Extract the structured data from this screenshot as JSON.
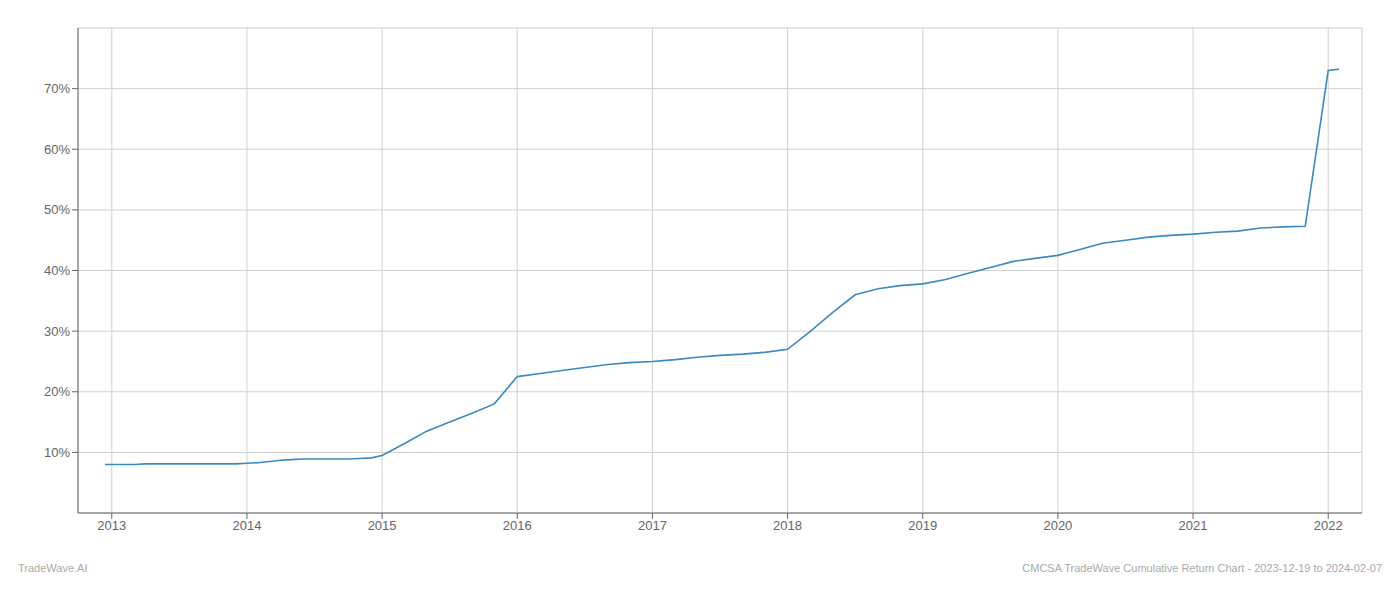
{
  "chart_data": {
    "type": "line",
    "annotations": [
      "TradeWave.AI",
      "CMCSA TradeWave Cumulative Return Chart - 2023-12-19 to 2024-02-07"
    ],
    "color": "#3a8abf",
    "grid": true,
    "x": [
      2012.95,
      2013.0,
      2013.08,
      2013.17,
      2013.25,
      2013.33,
      2013.42,
      2013.5,
      2013.58,
      2013.67,
      2013.75,
      2013.83,
      2013.92,
      2014.0,
      2014.08,
      2014.17,
      2014.25,
      2014.33,
      2014.42,
      2014.5,
      2014.58,
      2014.67,
      2014.75,
      2014.83,
      2014.92,
      2015.0,
      2015.17,
      2015.33,
      2015.5,
      2015.67,
      2015.83,
      2016.0,
      2016.17,
      2016.33,
      2016.5,
      2016.67,
      2016.83,
      2017.0,
      2017.17,
      2017.33,
      2017.5,
      2017.67,
      2017.83,
      2018.0,
      2018.17,
      2018.33,
      2018.5,
      2018.67,
      2018.83,
      2019.0,
      2019.17,
      2019.33,
      2019.5,
      2019.67,
      2019.83,
      2020.0,
      2020.17,
      2020.33,
      2020.5,
      2020.67,
      2020.83,
      2021.0,
      2021.17,
      2021.33,
      2021.5,
      2021.67,
      2021.83,
      2022.0,
      2022.08
    ],
    "values": [
      8.0,
      8.0,
      8.0,
      8.0,
      8.1,
      8.1,
      8.1,
      8.1,
      8.1,
      8.1,
      8.1,
      8.1,
      8.1,
      8.2,
      8.3,
      8.5,
      8.7,
      8.8,
      8.9,
      8.9,
      8.9,
      8.9,
      8.9,
      9.0,
      9.1,
      9.5,
      11.5,
      13.5,
      15.0,
      16.5,
      18.0,
      22.5,
      23.0,
      23.5,
      24.0,
      24.5,
      24.8,
      25.0,
      25.3,
      25.7,
      26.0,
      26.2,
      26.5,
      27.0,
      30.0,
      33.0,
      36.0,
      37.0,
      37.5,
      37.8,
      38.5,
      39.5,
      40.5,
      41.5,
      42.0,
      42.5,
      43.5,
      44.5,
      45.0,
      45.5,
      45.8,
      46.0,
      46.3,
      46.5,
      47.0,
      47.2,
      47.3,
      73.0,
      73.2
    ],
    "xlim": [
      2012.75,
      2022.25
    ],
    "xticks": [
      2013,
      2014,
      2015,
      2016,
      2017,
      2018,
      2019,
      2020,
      2021,
      2022
    ],
    "ylim": [
      0,
      80
    ],
    "yticks": [
      {
        "value": 10,
        "label": "10%"
      },
      {
        "value": 20,
        "label": "20%"
      },
      {
        "value": 30,
        "label": "30%"
      },
      {
        "value": 40,
        "label": "40%"
      },
      {
        "value": 50,
        "label": "50%"
      },
      {
        "value": 60,
        "label": "60%"
      },
      {
        "value": 70,
        "label": "70%"
      }
    ]
  }
}
